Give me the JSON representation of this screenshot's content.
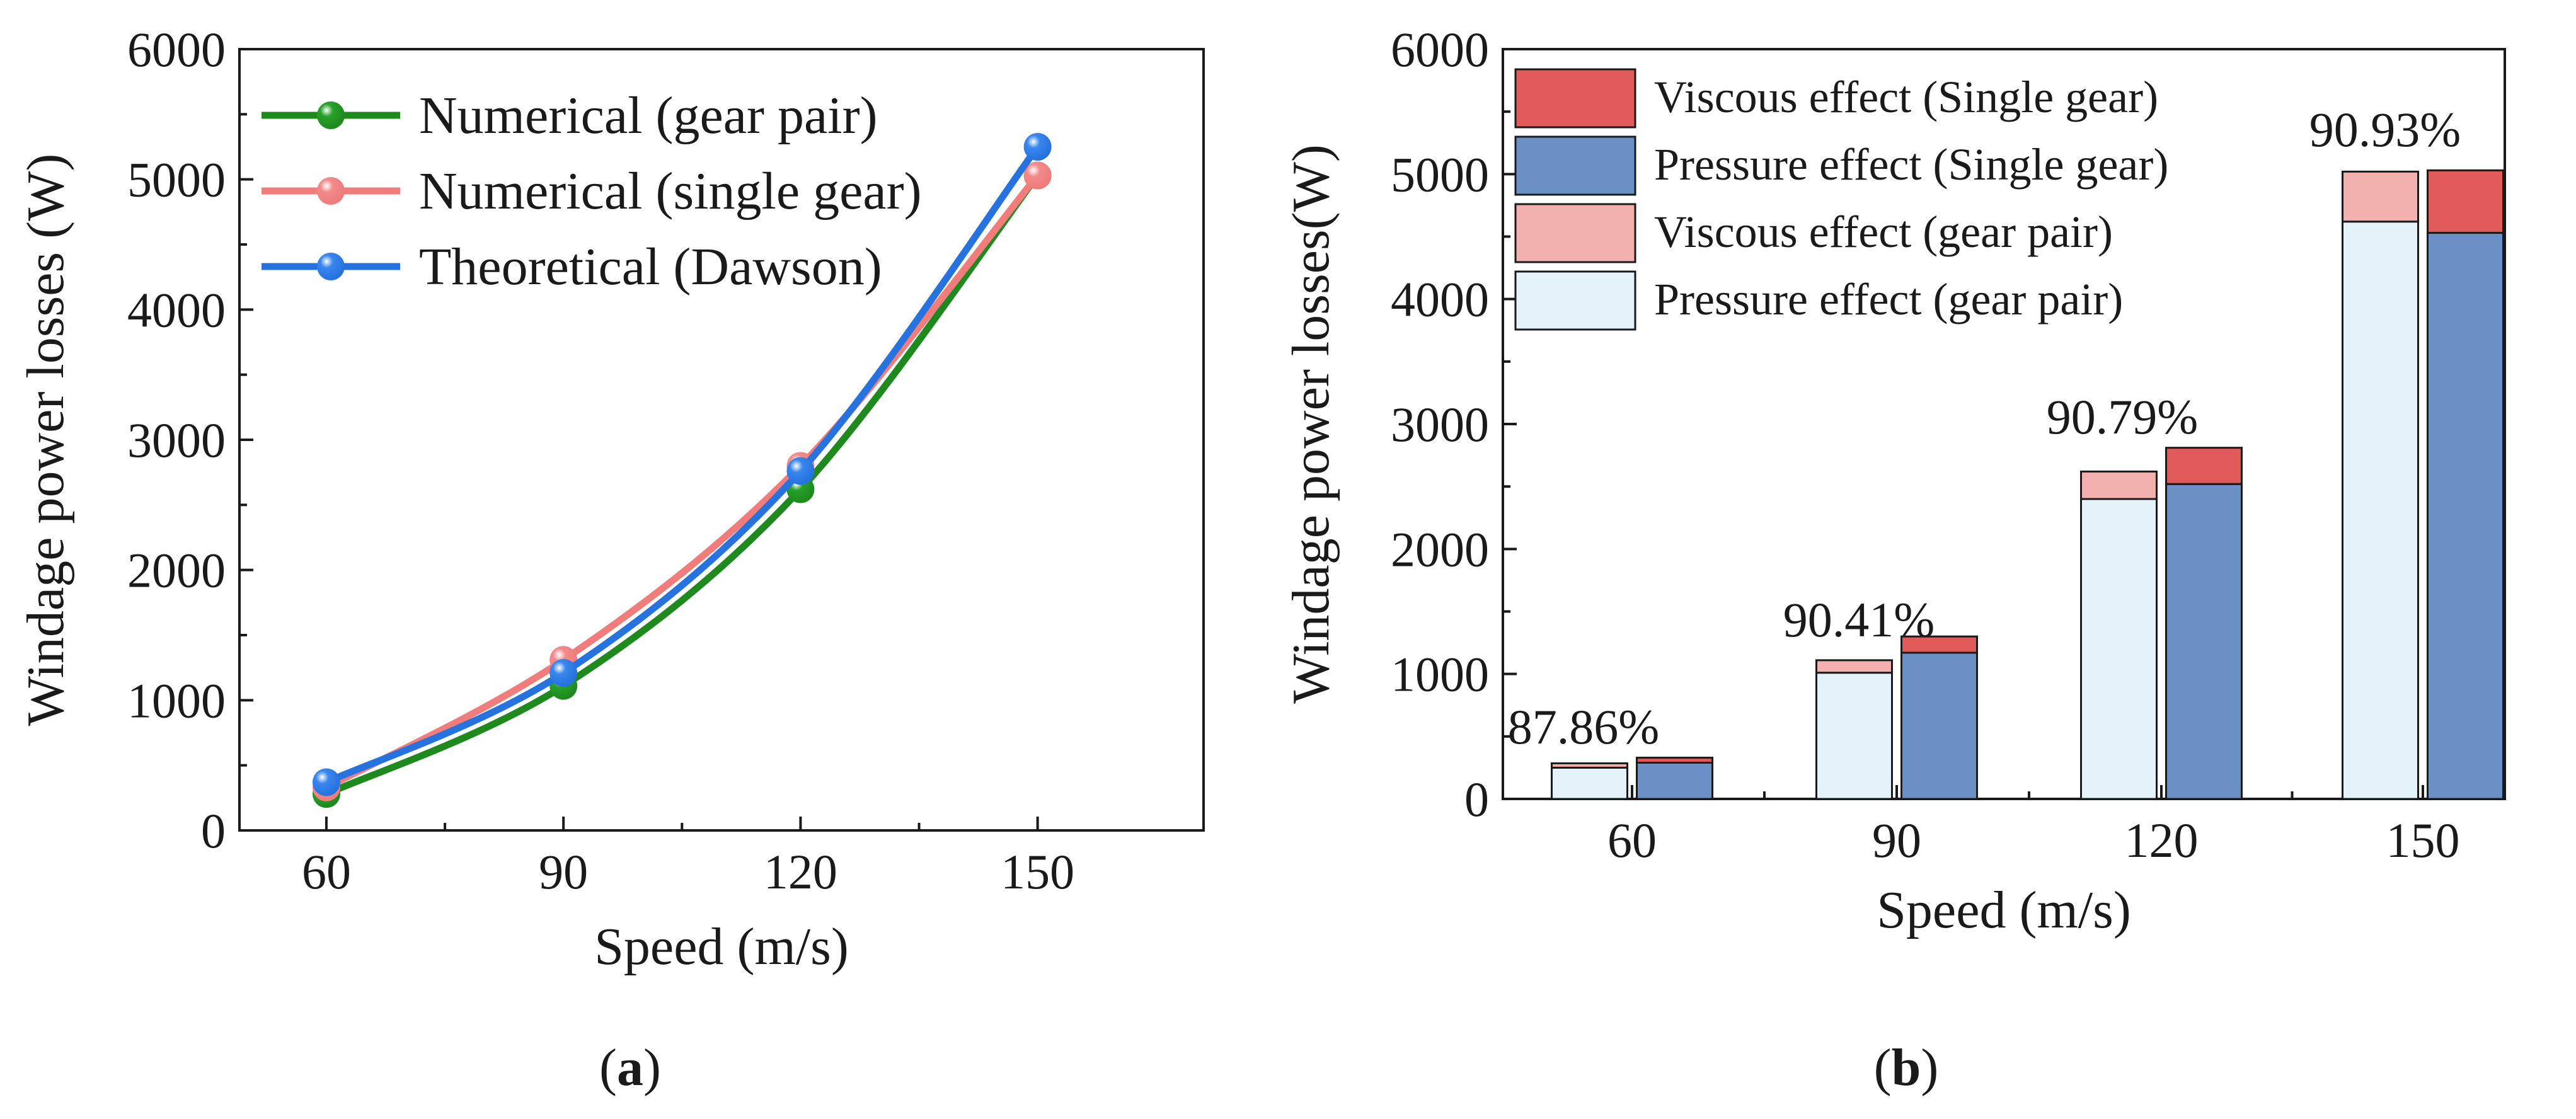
{
  "chart_data": [
    {
      "panel": "a",
      "type": "line",
      "panel_label": "a",
      "xlabel": "Speed (m/s)",
      "ylabel": "Windage power losses (W)",
      "xlim": [
        49,
        171
      ],
      "ylim": [
        0,
        6000
      ],
      "x_ticks": [
        60,
        90,
        120,
        150
      ],
      "y_ticks": [
        0,
        1000,
        2000,
        3000,
        4000,
        5000,
        6000
      ],
      "legend_position": "top-left",
      "x": [
        60,
        90,
        120,
        150
      ],
      "series": [
        {
          "name": "Numerical (gear pair)",
          "values": [
            280,
            1110,
            2620,
            5030
          ],
          "color": "#1e8a1e",
          "marker": "#27a12a"
        },
        {
          "name": "Numerical (single gear)",
          "values": [
            330,
            1310,
            2800,
            5030
          ],
          "color": "#f07c7c",
          "marker": "#f28a8a"
        },
        {
          "name": "Theoretical (Dawson)",
          "values": [
            370,
            1210,
            2760,
            5250
          ],
          "color": "#2673e0",
          "marker": "#3a86ee"
        }
      ]
    },
    {
      "panel": "b",
      "type": "bar",
      "stacked": true,
      "panel_label": "b",
      "xlabel": "Speed (m/s)",
      "ylabel": "Windage power losses(W)",
      "ylim": [
        0,
        6000
      ],
      "y_ticks": [
        0,
        1000,
        2000,
        3000,
        4000,
        5000,
        6000
      ],
      "categories": [
        "60",
        "90",
        "120",
        "150"
      ],
      "legend_position": "top-left",
      "legend": [
        {
          "name": "Viscous effect (Single gear)",
          "color": "#e05a5a"
        },
        {
          "name": "Pressure effect (Single gear)",
          "color": "#6b90c6"
        },
        {
          "name": "Viscous effect (gear pair)",
          "color": "#f2b0ae"
        },
        {
          "name": "Pressure effect (gear pair)",
          "color": "#e4f3fa"
        }
      ],
      "series": [
        {
          "name": "Pressure effect (gear pair)",
          "group": "gear pair",
          "values": [
            250,
            1010,
            2400,
            4620
          ],
          "color": "#e4f3fa"
        },
        {
          "name": "Viscous effect (gear pair)",
          "group": "gear pair",
          "values": [
            35,
            100,
            220,
            400
          ],
          "color": "#f2b0ae"
        },
        {
          "name": "Pressure effect (Single gear)",
          "group": "single gear",
          "values": [
            290,
            1170,
            2520,
            4530
          ],
          "color": "#6b90c6"
        },
        {
          "name": "Viscous effect (Single gear)",
          "group": "single gear",
          "values": [
            40,
            130,
            290,
            500
          ],
          "color": "#e05a5a"
        }
      ],
      "annotations": [
        "87.86%",
        "90.41%",
        "90.79%",
        "90.93%"
      ]
    }
  ]
}
